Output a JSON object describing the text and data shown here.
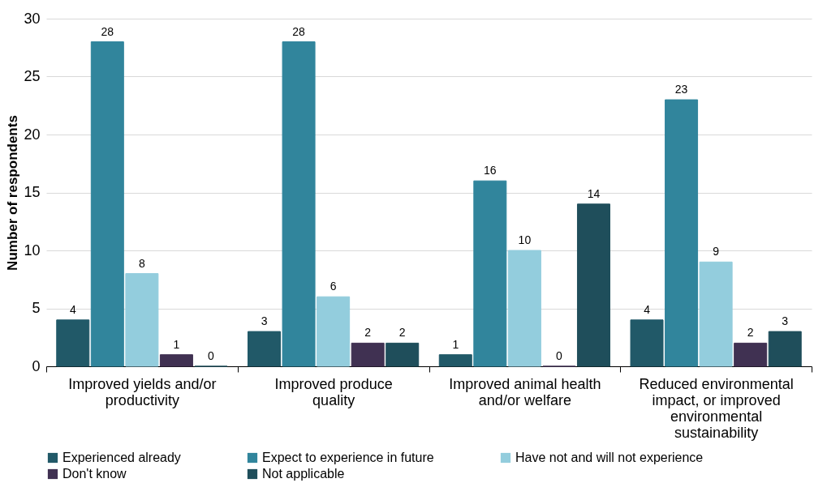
{
  "chart_data": {
    "type": "bar",
    "ylabel": "Number of respondents",
    "categories": [
      "Improved yields and/or productivity",
      "Improved produce quality",
      "Improved animal health and/or welfare",
      "Reduced environmental impact, or improved environmental sustainability"
    ],
    "series": [
      {
        "name": "Experienced already",
        "color": "#215968",
        "values": [
          4,
          3,
          1,
          4
        ]
      },
      {
        "name": "Expect to experience in future",
        "color": "#31859c",
        "values": [
          28,
          28,
          16,
          23
        ]
      },
      {
        "name": "Have not and will not experience",
        "color": "#93cddd",
        "values": [
          8,
          6,
          10,
          9
        ]
      },
      {
        "name": "Don't know",
        "color": "#403152",
        "values": [
          1,
          2,
          0,
          2
        ]
      },
      {
        "name": "Not applicable",
        "color": "#1f4e5b",
        "values": [
          0,
          2,
          14,
          3
        ]
      }
    ],
    "ylim": [
      0,
      30
    ],
    "yticks": [
      0,
      5,
      10,
      15,
      20,
      25,
      30
    ],
    "grid": "y",
    "legend": "bottom",
    "data_labels": true
  }
}
